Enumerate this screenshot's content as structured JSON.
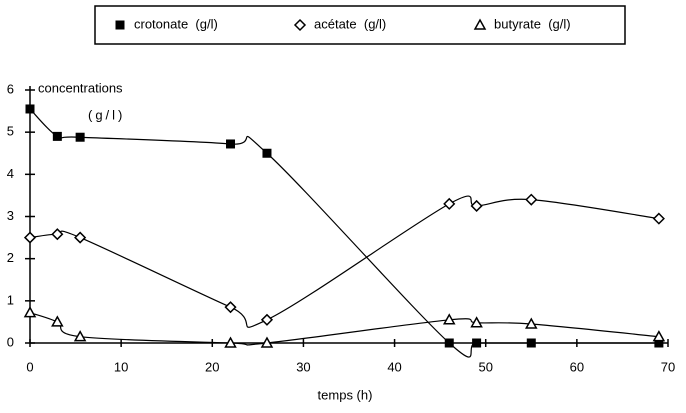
{
  "chart_data": {
    "type": "scatter",
    "x_label": "temps (h)",
    "y_label": "concentrations",
    "y_unit": "(g/l)",
    "x": [
      0,
      3,
      5.5,
      22,
      26,
      46,
      49,
      55,
      69
    ],
    "series": [
      {
        "name": "crotonate  (g/l)",
        "color": "#000000",
        "marker": "square",
        "values": [
          5.55,
          4.9,
          4.88,
          4.72,
          4.5,
          0,
          0,
          0,
          0
        ]
      },
      {
        "name": "acétate  (g/l)",
        "color": "#000000",
        "marker": "diamond",
        "values": [
          2.5,
          2.58,
          2.5,
          0.85,
          0.55,
          3.3,
          3.25,
          3.4,
          2.95
        ]
      },
      {
        "name": "butyrate  (g/l)",
        "color": "#000000",
        "marker": "triangle",
        "values": [
          0.72,
          0.5,
          0.15,
          0,
          0,
          0.55,
          0.48,
          0.45,
          0.15
        ]
      }
    ],
    "xlim": [
      0,
      70
    ],
    "xticks": [
      0,
      10,
      20,
      30,
      40,
      50,
      60,
      70
    ],
    "ylim": [
      0,
      6
    ],
    "yticks": [
      0,
      1,
      2,
      3,
      4,
      5,
      6
    ],
    "grid": false
  }
}
